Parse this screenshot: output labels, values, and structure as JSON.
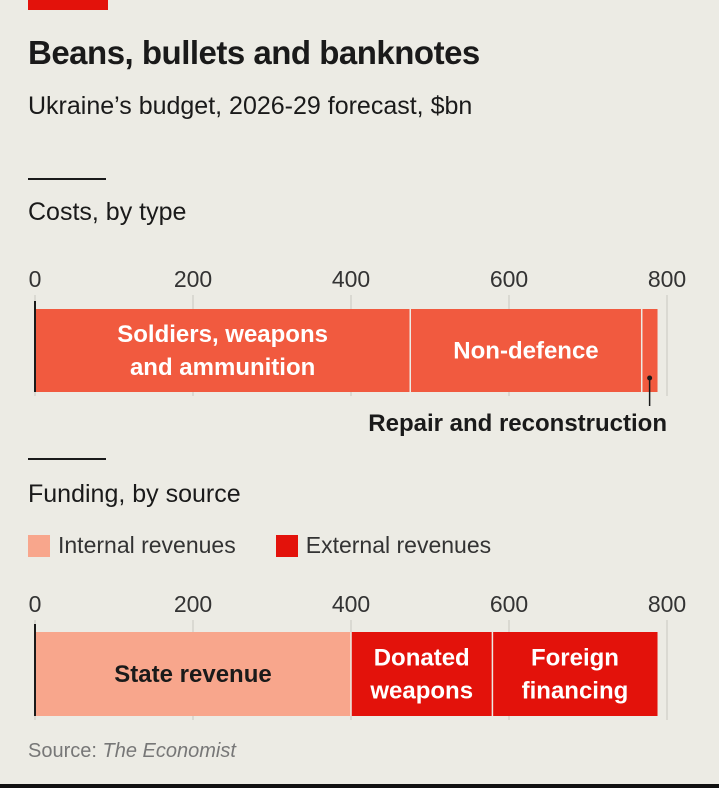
{
  "header": {
    "title": "Beans, bullets and banknotes",
    "subtitle": "Ukraine’s budget, 2026-29 forecast, $bn"
  },
  "chart_data": [
    {
      "type": "bar",
      "orientation": "horizontal-stacked",
      "title": "Costs, by type",
      "xlim": [
        0,
        800
      ],
      "ticks": [
        "0",
        "200",
        "400",
        "600",
        "800"
      ],
      "grid": true,
      "series": [
        {
          "name": "Soldiers, weapons and ammunition",
          "value": 475,
          "color": "#f15a3f",
          "label_lines": [
            "Soldiers, weapons",
            "and ammunition"
          ]
        },
        {
          "name": "Non-defence",
          "value": 293,
          "color": "#f15a3f",
          "label_lines": [
            "Non-defence"
          ]
        },
        {
          "name": "Repair and reconstruction",
          "value": 20,
          "color": "#f15a3f",
          "label_lines": [
            "Repair and reconstruction"
          ]
        }
      ]
    },
    {
      "type": "bar",
      "orientation": "horizontal-stacked",
      "title": "Funding, by source",
      "xlim": [
        0,
        800
      ],
      "ticks": [
        "0",
        "200",
        "400",
        "600",
        "800"
      ],
      "grid": true,
      "legend": [
        {
          "name": "Internal revenues",
          "color": "#f8a68c"
        },
        {
          "name": "External revenues",
          "color": "#e3120b"
        }
      ],
      "legend_position": "top-left",
      "series": [
        {
          "name": "State revenue",
          "value": 400,
          "group": "Internal revenues",
          "color": "#f8a68c",
          "label_lines": [
            "State revenue"
          ]
        },
        {
          "name": "Donated weapons",
          "value": 179,
          "group": "External revenues",
          "color": "#e3120b",
          "label_lines": [
            "Donated",
            "weapons"
          ]
        },
        {
          "name": "Foreign financing",
          "value": 209,
          "group": "External revenues",
          "color": "#e3120b",
          "label_lines": [
            "Foreign",
            "financing"
          ]
        }
      ]
    }
  ],
  "source": {
    "prefix": "Source: ",
    "name": "The Economist"
  }
}
